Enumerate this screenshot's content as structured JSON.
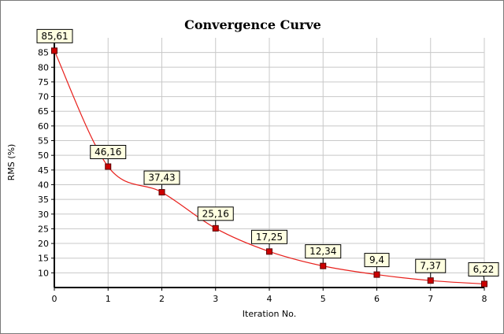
{
  "chart_data": {
    "type": "line",
    "title": "Convergence Curve",
    "xlabel": "Iteration No.",
    "ylabel": "RMS (%)",
    "x": [
      0,
      1,
      2,
      3,
      4,
      5,
      6,
      7,
      8
    ],
    "series": [
      {
        "values": [
          85.61,
          46.16,
          37.43,
          25.16,
          17.25,
          12.34,
          9.4,
          7.37,
          6.22
        ],
        "labels": [
          "85,61",
          "46,16",
          "37,43",
          "25,16",
          "17,25",
          "12,34",
          "9,4",
          "7,37",
          "6,22"
        ]
      }
    ],
    "xlim": [
      0,
      8
    ],
    "ylim": [
      5,
      90
    ],
    "xticks": [
      "0",
      "1",
      "2",
      "3",
      "4",
      "5",
      "6",
      "7",
      "8"
    ],
    "yticks": [
      "10",
      "15",
      "20",
      "25",
      "30",
      "35",
      "40",
      "45",
      "50",
      "55",
      "60",
      "65",
      "70",
      "75",
      "80",
      "85"
    ],
    "grid": true,
    "line_color": "#e8201c",
    "marker_color": "#cc0000",
    "label_box_color": "#ffffe1",
    "grid_color": "#c8c8c8"
  }
}
